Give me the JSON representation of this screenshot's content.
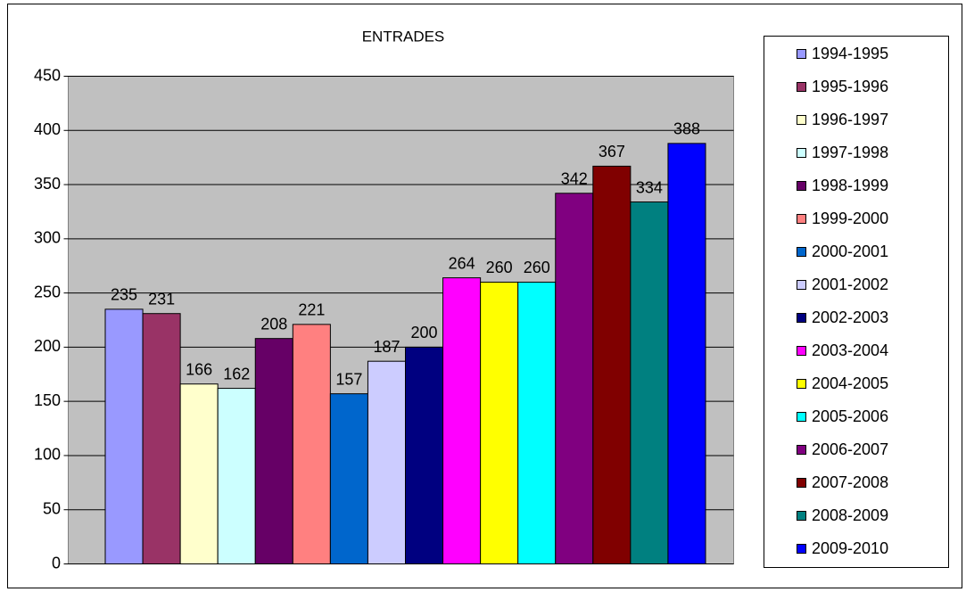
{
  "chart_data": {
    "type": "bar",
    "title": "ENTRADES",
    "categories": [
      null
    ],
    "series": [
      {
        "name": "1994-1995",
        "color": "#9999ff",
        "values": [
          235
        ]
      },
      {
        "name": "1995-1996",
        "color": "#993366",
        "values": [
          231
        ]
      },
      {
        "name": "1996-1997",
        "color": "#ffffcc",
        "values": [
          166
        ]
      },
      {
        "name": "1997-1998",
        "color": "#ccffff",
        "values": [
          162
        ]
      },
      {
        "name": "1998-1999",
        "color": "#660066",
        "values": [
          208
        ]
      },
      {
        "name": "1999-2000",
        "color": "#ff8080",
        "values": [
          221
        ]
      },
      {
        "name": "2000-2001",
        "color": "#0066cc",
        "values": [
          157
        ]
      },
      {
        "name": "2001-2002",
        "color": "#ccccff",
        "values": [
          187
        ]
      },
      {
        "name": "2002-2003",
        "color": "#000080",
        "values": [
          200
        ]
      },
      {
        "name": "2003-2004",
        "color": "#ff00ff",
        "values": [
          264
        ]
      },
      {
        "name": "2004-2005",
        "color": "#ffff00",
        "values": [
          260
        ]
      },
      {
        "name": "2005-2006",
        "color": "#00ffff",
        "values": [
          260
        ]
      },
      {
        "name": "2006-2007",
        "color": "#800080",
        "values": [
          342
        ]
      },
      {
        "name": "2007-2008",
        "color": "#800000",
        "values": [
          367
        ]
      },
      {
        "name": "2008-2009",
        "color": "#008080",
        "values": [
          334
        ]
      },
      {
        "name": "2009-2010",
        "color": "#0000ff",
        "values": [
          388
        ]
      }
    ],
    "ylim": [
      0,
      450
    ],
    "yticks": [
      0,
      50,
      100,
      150,
      200,
      250,
      300,
      350,
      400,
      450
    ],
    "grid": true,
    "legend": "right"
  }
}
